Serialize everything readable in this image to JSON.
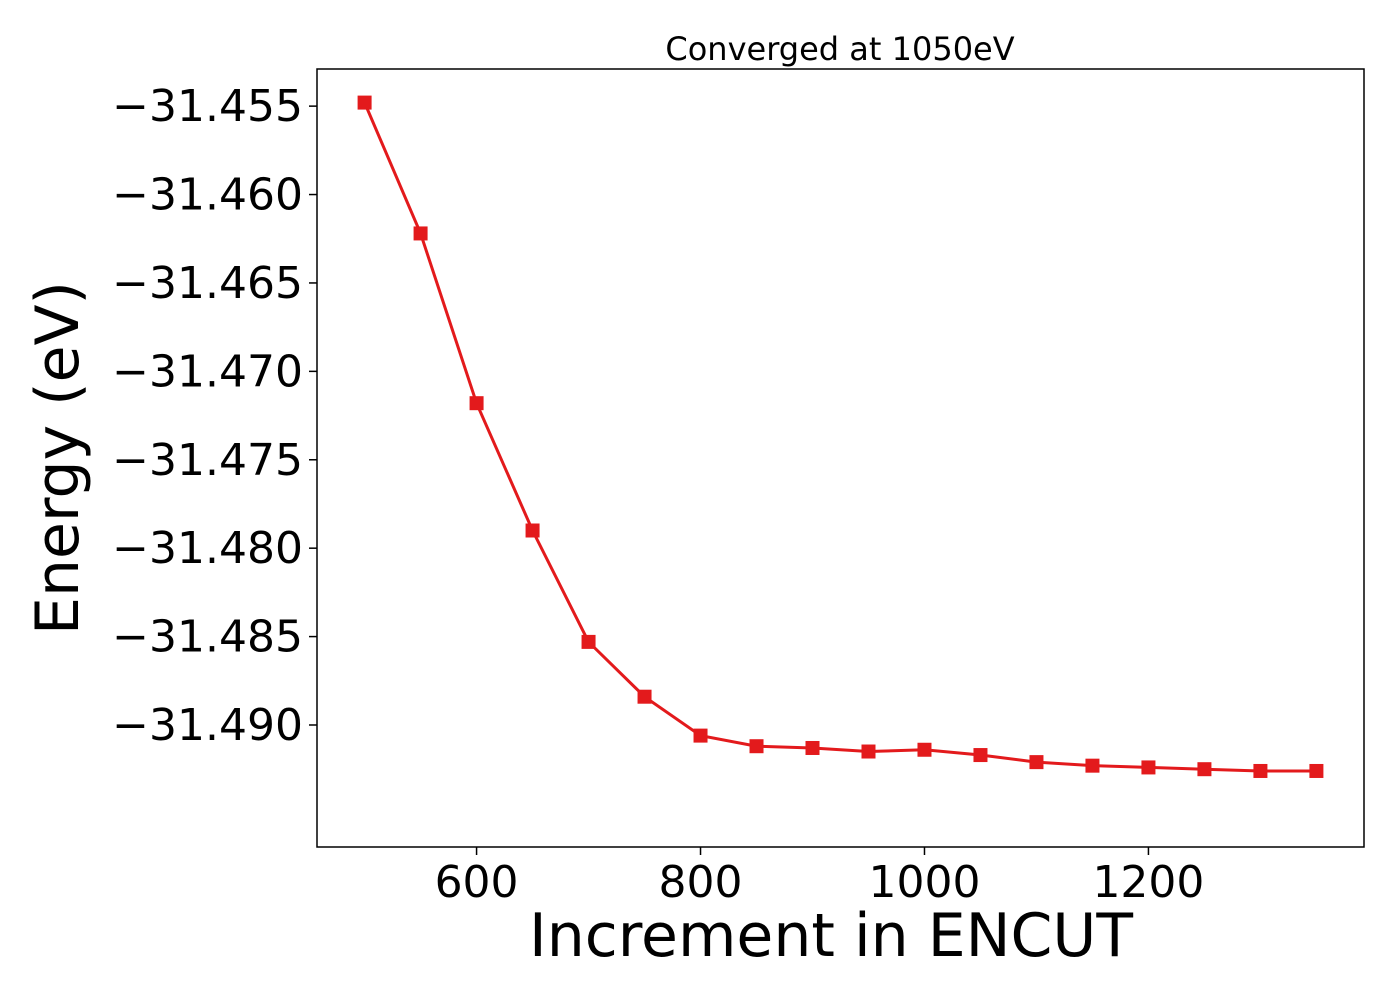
{
  "chart_data": {
    "type": "line",
    "title": "Converged at 1050eV",
    "xlabel": "Increment in ENCUT",
    "ylabel": "Energy (eV)",
    "x": [
      500,
      550,
      600,
      650,
      700,
      750,
      800,
      850,
      900,
      950,
      1000,
      1050,
      1100,
      1150,
      1200,
      1250,
      1300,
      1350
    ],
    "series": [
      {
        "color": "#e31a1c",
        "marker": "square",
        "values": [
          -31.4548,
          -31.4622,
          -31.4718,
          -31.479,
          -31.4853,
          -31.4884,
          -31.4906,
          -31.4912,
          -31.4913,
          -31.4915,
          -31.4914,
          -31.4917,
          -31.4921,
          -31.4923,
          -31.4924,
          -31.4925,
          -31.4926,
          -31.4926
        ]
      }
    ],
    "xlim": [
      457.5,
      1392.5
    ],
    "ylim": [
      -31.4969,
      -31.4529
    ],
    "xticks": [
      600,
      800,
      1000,
      1200
    ],
    "xtick_labels": [
      "600",
      "800",
      "1000",
      "1200"
    ],
    "yticks": [
      -31.455,
      -31.46,
      -31.465,
      -31.47,
      -31.475,
      -31.48,
      -31.485,
      -31.49
    ],
    "ytick_labels": [
      "−31.455",
      "−31.460",
      "−31.465",
      "−31.470",
      "−31.475",
      "−31.480",
      "−31.485",
      "−31.490"
    ],
    "grid": false,
    "legend": "none"
  }
}
